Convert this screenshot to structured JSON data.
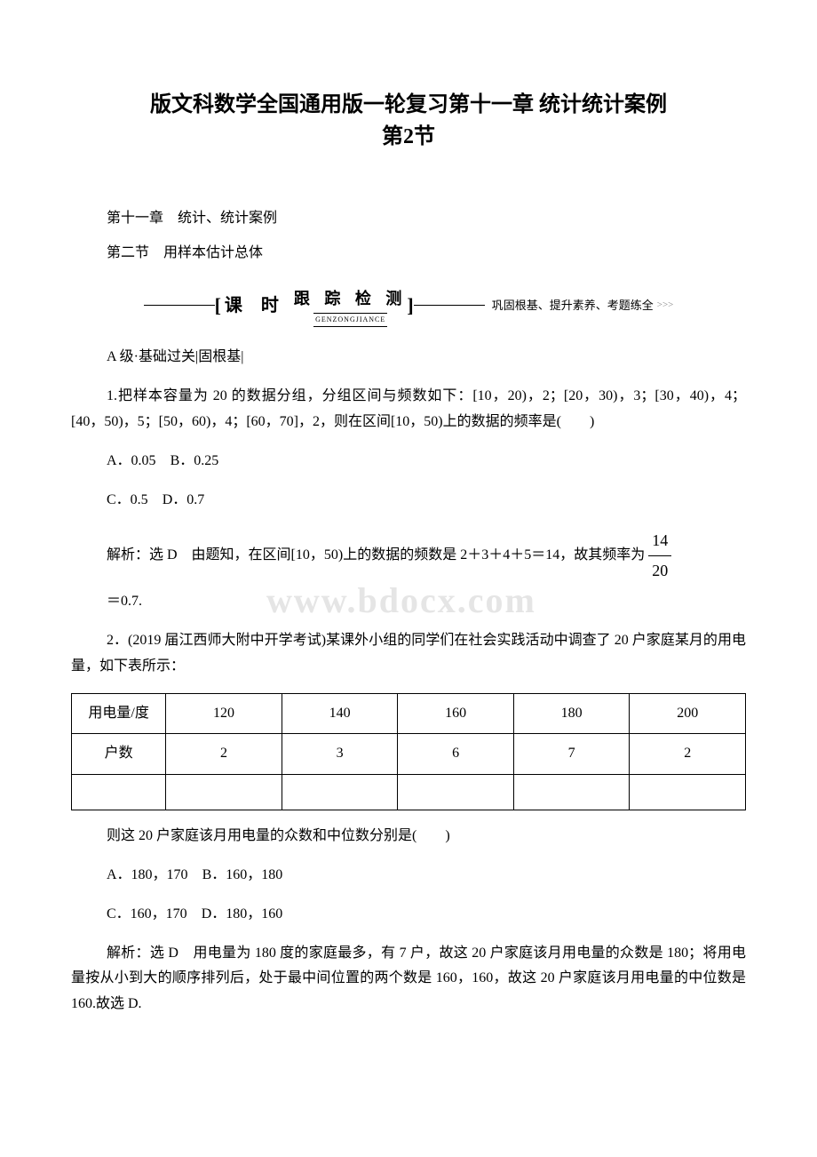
{
  "title_line1": "版文科数学全国通用版一轮复习第十一章 统计统计案例",
  "title_line2": "第2节",
  "chapter": "第十一章　统计、统计案例",
  "section": "第二节　用样本估计总体",
  "banner": {
    "label": "课 时",
    "sub_cn": "跟 踪 检 测",
    "sub_en": "GENZONGJIANCE",
    "right": "巩固根基、提升素养、考题练全",
    "arrows": ">>>"
  },
  "level": "A 级·基础过关|固根基|",
  "q1": {
    "text": "1.把样本容量为 20 的数据分组，分组区间与频数如下：[10，20)，2；[20，30)，3；[30，40)，4；[40，50)，5；[50，60)，4；[60，70]，2，则在区间[10，50)上的数据的频率是(　　)",
    "optA": "A．0.05",
    "optB": "B．0.25",
    "optC": "C．0.5",
    "optD": "D．0.7",
    "sol_prefix": "解析：选 D　由题知，在区间[10，50)上的数据的频数是 2＋3＋4＋5＝14，故其频率为",
    "frac_num": "14",
    "frac_den": "20",
    "sol_tail": "＝0.7."
  },
  "q2": {
    "text": "2．(2019 届江西师大附中开学考试)某课外小组的同学们在社会实践活动中调查了 20 户家庭某月的用电量，如下表所示：",
    "table": {
      "r1h": "用电量/度",
      "r1": [
        "120",
        "140",
        "160",
        "180",
        "200"
      ],
      "r2h": "户数",
      "r2": [
        "2",
        "3",
        "6",
        "7",
        "2"
      ]
    },
    "after": "则这 20 户家庭该月用电量的众数和中位数分别是(　　)",
    "optA": "A．180，170",
    "optB": "B．160，180",
    "optC": "C．160，170",
    "optD": "D．180，160",
    "sol": "解析：选 D　用电量为 180 度的家庭最多，有 7 户，故这 20 户家庭该月用电量的众数是 180；将用电量按从小到大的顺序排列后，处于最中间位置的两个数是 160，160，故这 20 户家庭该月用电量的中位数是 160.故选 D."
  },
  "watermark": "www.bdocx.com"
}
